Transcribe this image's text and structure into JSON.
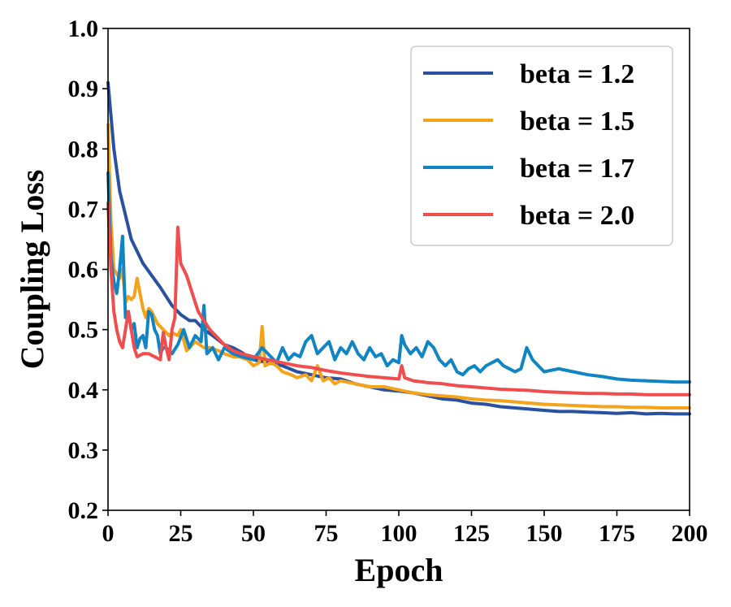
{
  "chart_data": {
    "type": "line",
    "title": "",
    "xlabel": "Epoch",
    "ylabel": "Coupling Loss",
    "xlim": [
      0,
      200
    ],
    "ylim": [
      0.2,
      1.0
    ],
    "xticks": [
      "0",
      "25",
      "50",
      "75",
      "100",
      "125",
      "150",
      "175",
      "200"
    ],
    "yticks": [
      "0.2",
      "0.3",
      "0.4",
      "0.5",
      "0.6",
      "0.7",
      "0.8",
      "0.9",
      "1.0"
    ],
    "legend_position": "top-right",
    "series": [
      {
        "name": "beta = 1.2",
        "color": "#2a51a0",
        "x": [
          0,
          2,
          4,
          6,
          8,
          10,
          12,
          15,
          18,
          20,
          22,
          25,
          28,
          30,
          33,
          36,
          40,
          43,
          46,
          50,
          55,
          60,
          65,
          70,
          75,
          80,
          85,
          90,
          95,
          100,
          105,
          110,
          115,
          120,
          125,
          130,
          135,
          140,
          145,
          150,
          155,
          160,
          165,
          170,
          175,
          180,
          185,
          190,
          195,
          200
        ],
        "y": [
          0.91,
          0.8,
          0.73,
          0.69,
          0.65,
          0.63,
          0.61,
          0.59,
          0.57,
          0.555,
          0.54,
          0.525,
          0.515,
          0.515,
          0.5,
          0.49,
          0.475,
          0.47,
          0.462,
          0.45,
          0.445,
          0.44,
          0.43,
          0.425,
          0.42,
          0.418,
          0.41,
          0.405,
          0.4,
          0.398,
          0.395,
          0.39,
          0.385,
          0.383,
          0.378,
          0.376,
          0.372,
          0.37,
          0.368,
          0.366,
          0.364,
          0.364,
          0.363,
          0.362,
          0.361,
          0.362,
          0.36,
          0.361,
          0.36,
          0.36
        ]
      },
      {
        "name": "beta = 1.5",
        "color": "#f5a31a",
        "x": [
          0,
          1,
          2,
          4,
          5,
          6,
          7,
          8,
          9,
          10,
          11,
          12,
          13,
          14,
          15,
          17,
          19,
          20,
          21,
          22,
          24,
          25,
          27,
          30,
          33,
          35,
          38,
          40,
          43,
          45,
          48,
          50,
          52,
          53,
          54,
          56,
          58,
          60,
          63,
          65,
          68,
          70,
          72,
          74,
          76,
          78,
          80,
          85,
          90,
          95,
          100,
          105,
          110,
          115,
          120,
          125,
          130,
          135,
          140,
          145,
          150,
          155,
          160,
          165,
          170,
          175,
          180,
          185,
          190,
          195,
          200
        ],
        "y": [
          0.84,
          0.68,
          0.6,
          0.585,
          0.6,
          0.545,
          0.555,
          0.55,
          0.555,
          0.585,
          0.56,
          0.535,
          0.52,
          0.535,
          0.53,
          0.51,
          0.5,
          0.495,
          0.49,
          0.495,
          0.49,
          0.5,
          0.465,
          0.48,
          0.47,
          0.47,
          0.465,
          0.46,
          0.455,
          0.455,
          0.45,
          0.44,
          0.445,
          0.505,
          0.44,
          0.445,
          0.44,
          0.43,
          0.425,
          0.42,
          0.425,
          0.415,
          0.44,
          0.415,
          0.42,
          0.41,
          0.415,
          0.41,
          0.405,
          0.405,
          0.4,
          0.395,
          0.392,
          0.39,
          0.388,
          0.385,
          0.383,
          0.382,
          0.38,
          0.378,
          0.376,
          0.375,
          0.374,
          0.373,
          0.372,
          0.372,
          0.371,
          0.371,
          0.37,
          0.37,
          0.37
        ]
      },
      {
        "name": "beta = 1.7",
        "color": "#1185c4",
        "x": [
          0,
          1,
          2,
          3,
          4,
          5,
          6,
          7,
          8,
          9,
          10,
          11,
          12,
          13,
          14,
          15,
          16,
          17,
          18,
          19,
          20,
          22,
          24,
          26,
          28,
          30,
          32,
          33,
          34,
          36,
          38,
          40,
          43,
          46,
          50,
          53,
          56,
          58,
          60,
          62,
          64,
          66,
          68,
          70,
          72,
          74,
          76,
          78,
          80,
          82,
          84,
          86,
          88,
          90,
          92,
          94,
          96,
          98,
          100,
          101,
          102,
          104,
          106,
          108,
          110,
          112,
          114,
          116,
          118,
          120,
          122,
          124,
          126,
          128,
          130,
          132,
          134,
          136,
          138,
          140,
          142,
          144,
          146,
          148,
          150,
          155,
          160,
          165,
          170,
          175,
          180,
          185,
          190,
          195,
          200
        ],
        "y": [
          0.76,
          0.62,
          0.58,
          0.56,
          0.6,
          0.655,
          0.52,
          0.53,
          0.5,
          0.51,
          0.47,
          0.485,
          0.49,
          0.47,
          0.53,
          0.525,
          0.5,
          0.49,
          0.46,
          0.47,
          0.47,
          0.46,
          0.475,
          0.5,
          0.47,
          0.49,
          0.48,
          0.54,
          0.46,
          0.47,
          0.45,
          0.47,
          0.46,
          0.455,
          0.45,
          0.47,
          0.455,
          0.445,
          0.47,
          0.45,
          0.46,
          0.455,
          0.48,
          0.49,
          0.46,
          0.47,
          0.48,
          0.45,
          0.47,
          0.46,
          0.48,
          0.46,
          0.45,
          0.47,
          0.455,
          0.46,
          0.44,
          0.45,
          0.445,
          0.49,
          0.475,
          0.46,
          0.47,
          0.455,
          0.48,
          0.47,
          0.45,
          0.44,
          0.45,
          0.43,
          0.425,
          0.435,
          0.44,
          0.43,
          0.44,
          0.445,
          0.45,
          0.44,
          0.435,
          0.43,
          0.435,
          0.47,
          0.45,
          0.44,
          0.43,
          0.435,
          0.43,
          0.425,
          0.422,
          0.418,
          0.416,
          0.415,
          0.414,
          0.413,
          0.413
        ]
      },
      {
        "name": "beta = 2.0",
        "color": "#f04e4e",
        "x": [
          0,
          1,
          2,
          3,
          4,
          5,
          6,
          7,
          8,
          9,
          10,
          12,
          14,
          16,
          18,
          19,
          20,
          21,
          22,
          23,
          24,
          25,
          27,
          29,
          31,
          33,
          35,
          37,
          40,
          43,
          46,
          50,
          55,
          60,
          65,
          70,
          75,
          80,
          85,
          90,
          95,
          100,
          101,
          102,
          105,
          110,
          115,
          120,
          125,
          130,
          135,
          140,
          145,
          150,
          155,
          160,
          165,
          170,
          175,
          180,
          185,
          190,
          195,
          200
        ],
        "y": [
          0.71,
          0.6,
          0.53,
          0.5,
          0.48,
          0.47,
          0.5,
          0.53,
          0.5,
          0.47,
          0.455,
          0.46,
          0.46,
          0.455,
          0.45,
          0.495,
          0.47,
          0.45,
          0.5,
          0.52,
          0.67,
          0.61,
          0.59,
          0.56,
          0.53,
          0.515,
          0.5,
          0.49,
          0.475,
          0.465,
          0.46,
          0.455,
          0.45,
          0.445,
          0.44,
          0.437,
          0.432,
          0.428,
          0.425,
          0.422,
          0.42,
          0.418,
          0.44,
          0.42,
          0.415,
          0.412,
          0.41,
          0.407,
          0.405,
          0.403,
          0.401,
          0.4,
          0.399,
          0.397,
          0.396,
          0.395,
          0.394,
          0.394,
          0.393,
          0.393,
          0.392,
          0.392,
          0.392,
          0.392
        ]
      }
    ]
  }
}
